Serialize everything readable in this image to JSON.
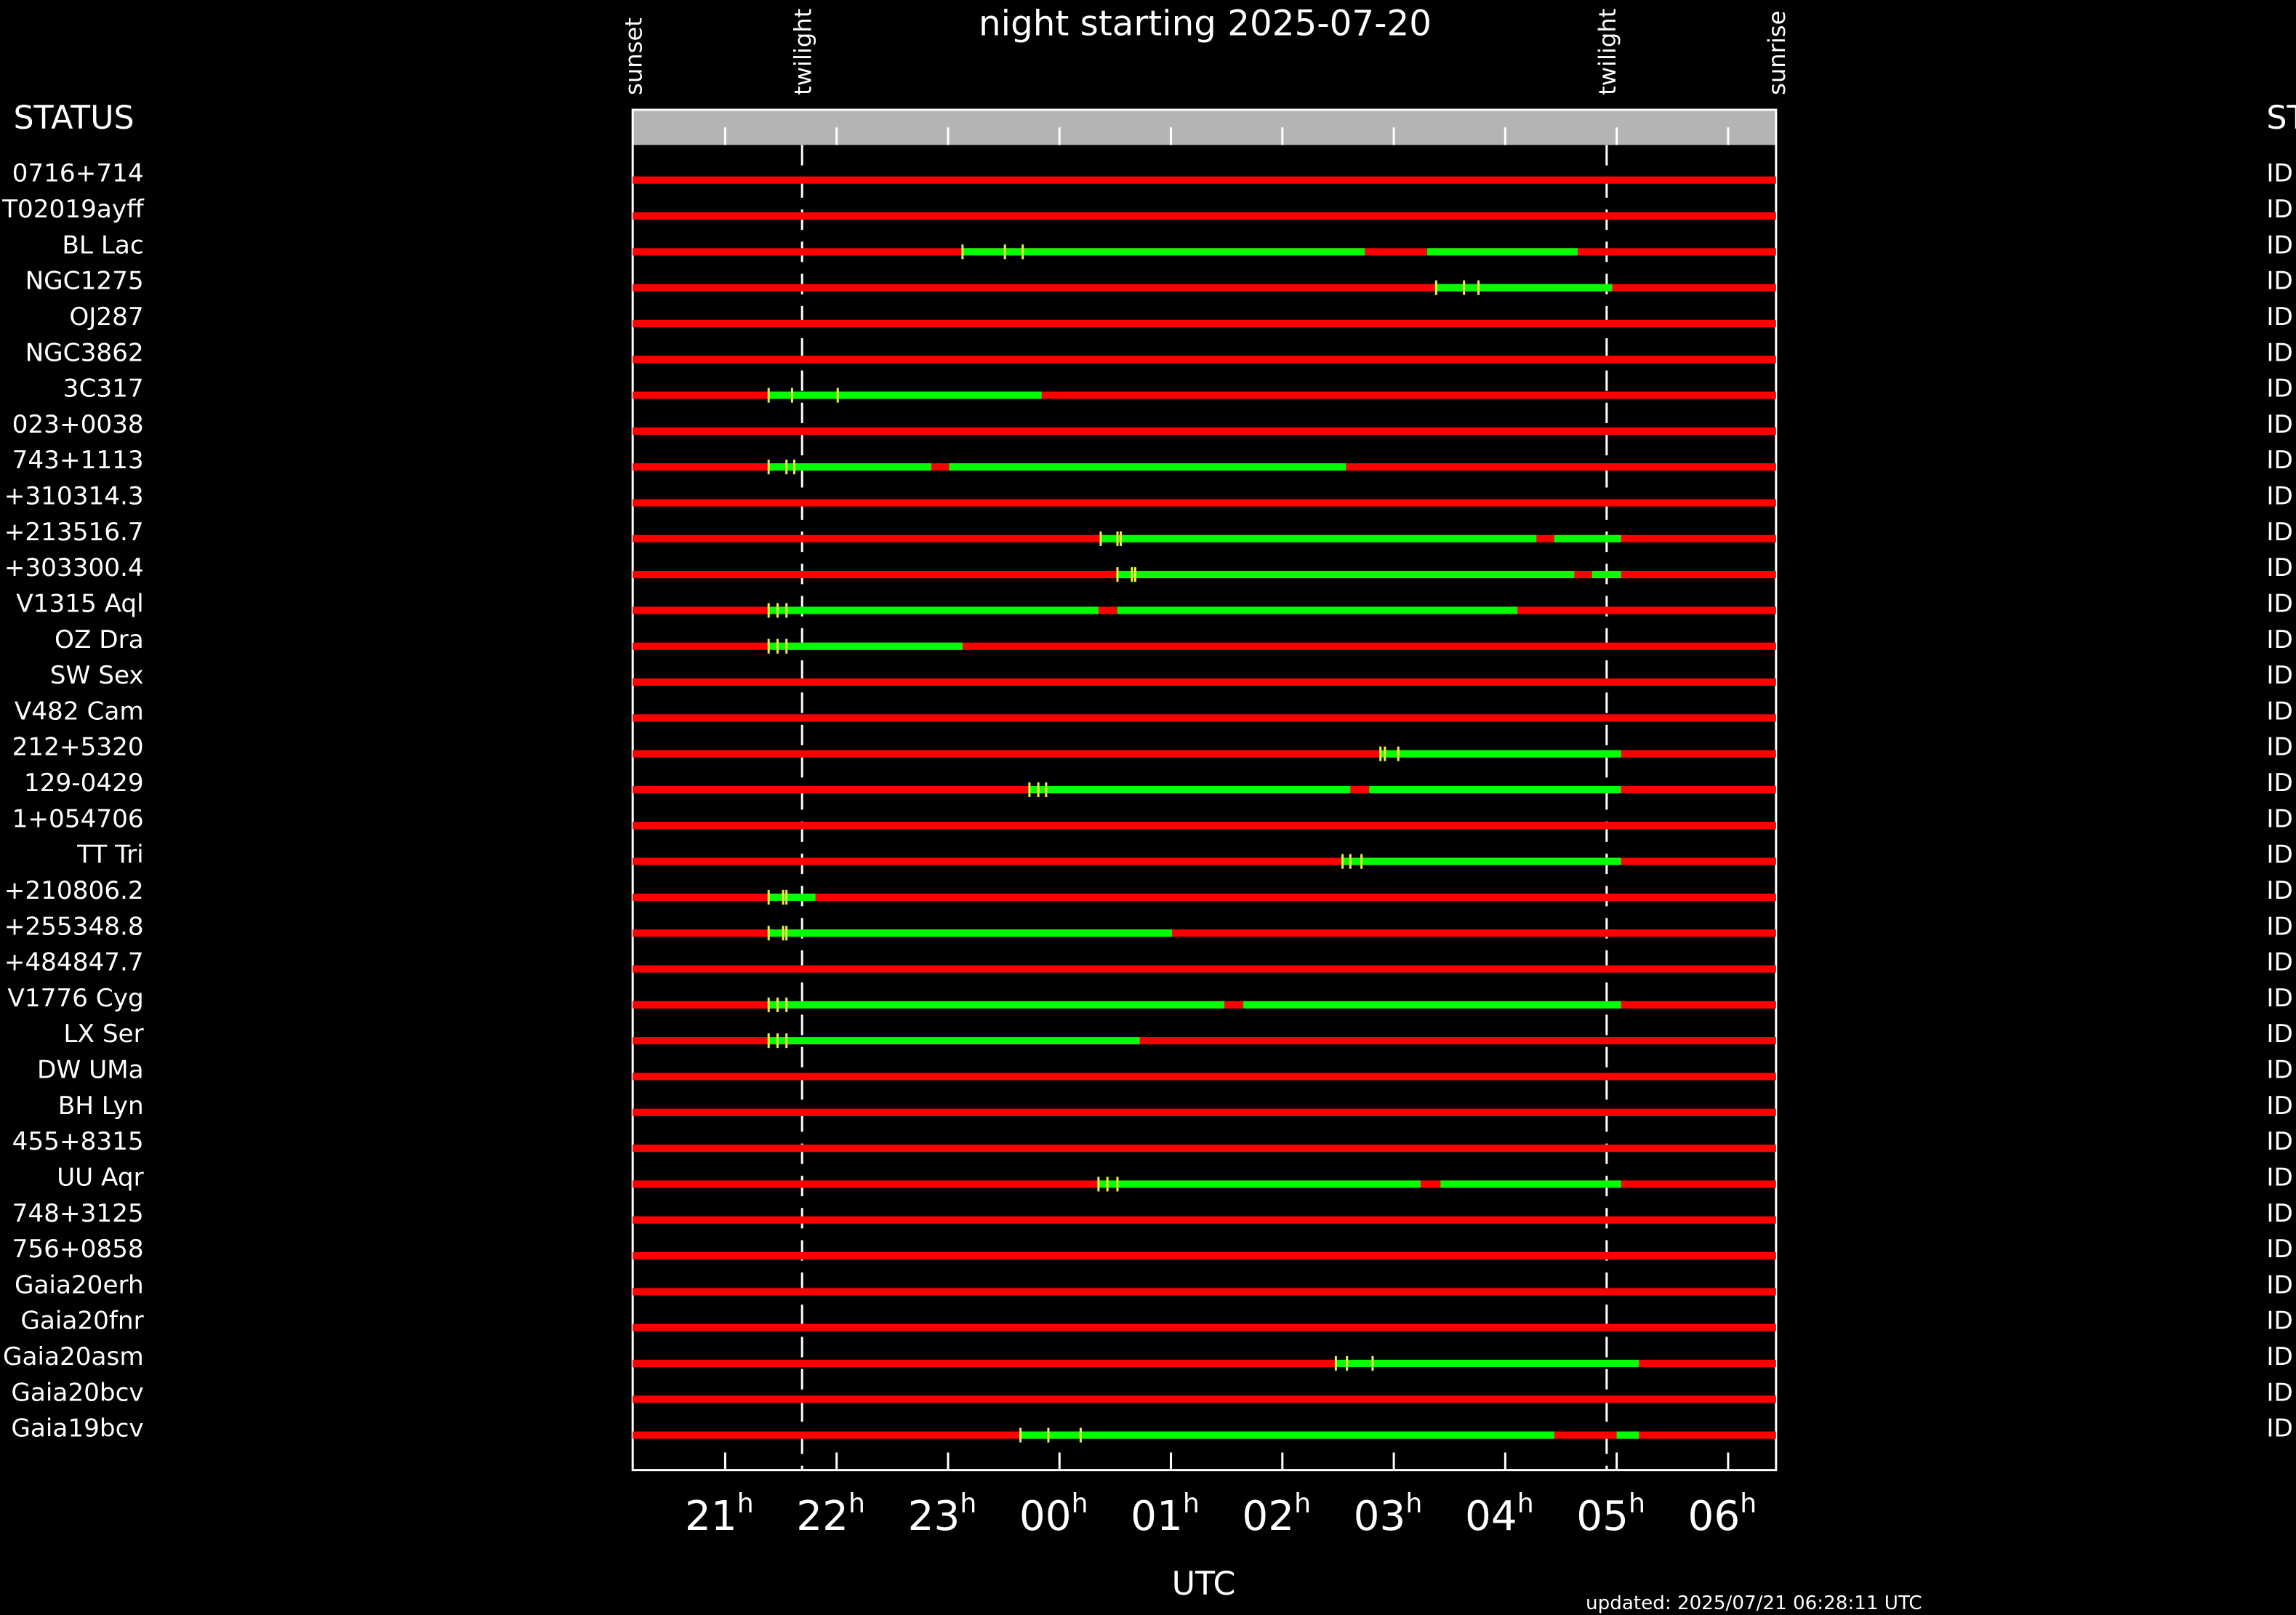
{
  "chart_data": {
    "type": "timeline",
    "title": "night starting 2025-07-20",
    "row_header": "STATUS",
    "right_header": "ST",
    "xlabel": "UTC",
    "updated": "updated: 2025/07/21 06:28:11 UTC",
    "x_tick_suffix": "h",
    "xlim": [
      20.17,
      30.43
    ],
    "xticks": [
      21,
      22,
      23,
      {
        "value": 24,
        "label": "00"
      },
      {
        "value": 25,
        "label": "01"
      },
      {
        "value": 26,
        "label": "02"
      },
      {
        "value": 27,
        "label": "03"
      },
      {
        "value": 28,
        "label": "04"
      },
      {
        "value": 29,
        "label": "05"
      },
      {
        "value": 30,
        "label": "06"
      }
    ],
    "events": [
      {
        "label": "sunset",
        "x": 20.17
      },
      {
        "label": "twilight",
        "x": 21.69
      },
      {
        "label": "twilight",
        "x": 28.91
      },
      {
        "label": "sunrise",
        "x": 30.43
      }
    ],
    "base_color": "#ff0000",
    "segment_color": "#00ff00",
    "tick_color": "#f0f040",
    "rows": [
      {
        "name": "0716+714",
        "status": "ID",
        "segments": [],
        "ticks": []
      },
      {
        "name": "T02019ayff",
        "status": "ID",
        "segments": [],
        "ticks": []
      },
      {
        "name": "BL Lac",
        "status": "ID",
        "segments": [
          [
            23.13,
            26.74
          ],
          [
            27.3,
            28.65
          ]
        ],
        "ticks": [
          23.13,
          23.51,
          23.67
        ]
      },
      {
        "name": "NGC1275",
        "status": "ID",
        "segments": [
          [
            27.38,
            28.96
          ]
        ],
        "ticks": [
          27.38,
          27.63,
          27.76
        ]
      },
      {
        "name": "OJ287",
        "status": "ID",
        "segments": [],
        "ticks": []
      },
      {
        "name": "NGC3862",
        "status": "ID",
        "segments": [],
        "ticks": []
      },
      {
        "name": "3C317",
        "status": "ID",
        "segments": [
          [
            21.39,
            23.84
          ]
        ],
        "ticks": [
          21.39,
          21.6,
          22.01
        ]
      },
      {
        "name": "023+0038",
        "status": "ID",
        "segments": [],
        "ticks": []
      },
      {
        "name": "743+1113",
        "status": "ID",
        "segments": [
          [
            21.39,
            22.85
          ],
          [
            23.01,
            26.57
          ]
        ],
        "ticks": [
          21.39,
          21.55,
          21.62
        ]
      },
      {
        "name": "+310314.3",
        "status": "ID",
        "segments": [],
        "ticks": []
      },
      {
        "name": "+213516.7",
        "status": "ID",
        "segments": [
          [
            24.37,
            28.28
          ],
          [
            28.44,
            29.04
          ]
        ],
        "ticks": [
          24.37,
          24.52,
          24.55
        ]
      },
      {
        "name": "+303300.4",
        "status": "ID",
        "segments": [
          [
            24.52,
            28.62
          ],
          [
            28.78,
            29.04
          ]
        ],
        "ticks": [
          24.52,
          24.65,
          24.68
        ]
      },
      {
        "name": "V1315 Aql",
        "status": "ID",
        "segments": [
          [
            21.39,
            24.35
          ],
          [
            24.52,
            28.11
          ]
        ],
        "ticks": [
          21.39,
          21.47,
          21.55
        ]
      },
      {
        "name": "OZ Dra",
        "status": "ID",
        "segments": [
          [
            21.39,
            23.13
          ]
        ],
        "ticks": [
          21.39,
          21.47,
          21.55
        ]
      },
      {
        "name": "SW Sex",
        "status": "ID",
        "segments": [],
        "ticks": []
      },
      {
        "name": "V482 Cam",
        "status": "ID",
        "segments": [],
        "ticks": []
      },
      {
        "name": "212+5320",
        "status": "ID",
        "segments": [
          [
            26.88,
            29.04
          ]
        ],
        "ticks": [
          26.88,
          26.92,
          27.04
        ]
      },
      {
        "name": "129-0429",
        "status": "ID",
        "segments": [
          [
            23.73,
            26.61
          ],
          [
            26.78,
            29.04
          ]
        ],
        "ticks": [
          23.73,
          23.81,
          23.88
        ]
      },
      {
        "name": "1+054706",
        "status": "ID",
        "segments": [],
        "ticks": []
      },
      {
        "name": "TT Tri",
        "status": "ID",
        "segments": [
          [
            26.54,
            29.04
          ]
        ],
        "ticks": [
          26.54,
          26.61,
          26.71
        ]
      },
      {
        "name": "+210806.2",
        "status": "ID",
        "segments": [
          [
            21.39,
            21.81
          ]
        ],
        "ticks": [
          21.39,
          21.52,
          21.55
        ]
      },
      {
        "name": "+255348.8",
        "status": "ID",
        "segments": [
          [
            21.39,
            25.01
          ]
        ],
        "ticks": [
          21.39,
          21.52,
          21.55
        ]
      },
      {
        "name": "+484847.7",
        "status": "ID",
        "segments": [],
        "ticks": []
      },
      {
        "name": "V1776 Cyg",
        "status": "ID",
        "segments": [
          [
            21.39,
            25.48
          ],
          [
            25.65,
            29.04
          ]
        ],
        "ticks": [
          21.39,
          21.47,
          21.55
        ]
      },
      {
        "name": "LX Ser",
        "status": "ID",
        "segments": [
          [
            21.39,
            24.72
          ]
        ],
        "ticks": [
          21.39,
          21.47,
          21.55
        ]
      },
      {
        "name": "DW UMa",
        "status": "ID",
        "segments": [],
        "ticks": []
      },
      {
        "name": "BH Lyn",
        "status": "ID",
        "segments": [],
        "ticks": []
      },
      {
        "name": "455+8315",
        "status": "ID",
        "segments": [],
        "ticks": []
      },
      {
        "name": "UU Aqr",
        "status": "ID",
        "segments": [
          [
            24.35,
            27.24
          ],
          [
            27.42,
            29.04
          ]
        ],
        "ticks": [
          24.35,
          24.43,
          24.52
        ]
      },
      {
        "name": "748+3125",
        "status": "ID",
        "segments": [],
        "ticks": []
      },
      {
        "name": "756+0858",
        "status": "ID",
        "segments": [],
        "ticks": []
      },
      {
        "name": "Gaia20erh",
        "status": "ID",
        "segments": [],
        "ticks": []
      },
      {
        "name": "Gaia20fnr",
        "status": "ID",
        "segments": [],
        "ticks": []
      },
      {
        "name": "Gaia20asm",
        "status": "ID",
        "segments": [
          [
            26.48,
            29.2
          ]
        ],
        "ticks": [
          26.48,
          26.58,
          26.81
        ]
      },
      {
        "name": "Gaia20bcv",
        "status": "ID",
        "segments": [],
        "ticks": []
      },
      {
        "name": "Gaia19bcv",
        "status": "ID",
        "segments": [
          [
            23.65,
            28.44
          ],
          [
            29.0,
            29.2
          ]
        ],
        "ticks": [
          23.65,
          23.9,
          24.19
        ]
      }
    ]
  }
}
